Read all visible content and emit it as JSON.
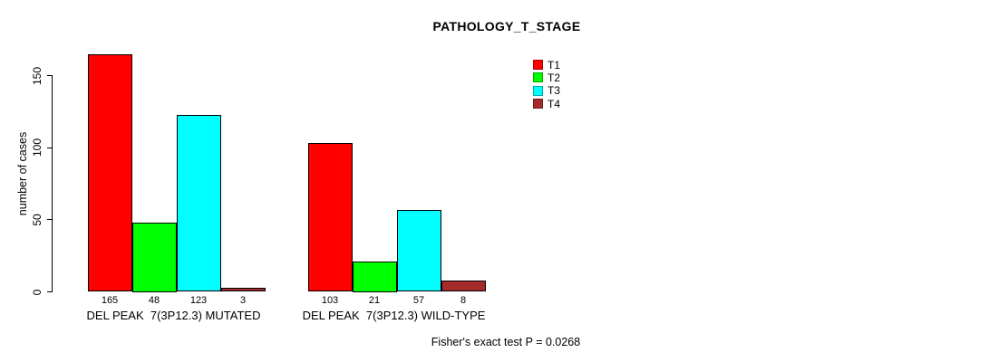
{
  "chart_data": {
    "type": "bar",
    "title": "PATHOLOGY_T_STAGE",
    "ylabel": "number of cases",
    "xlabel": "",
    "ylim": [
      0,
      165
    ],
    "yticks": [
      0,
      50,
      100,
      150
    ],
    "grid": false,
    "legend_position": "top-right",
    "categories": [
      "DEL PEAK  7(3P12.3) MUTATED",
      "DEL PEAK  7(3P12.3) WILD-TYPE"
    ],
    "series": [
      {
        "name": "T1",
        "color": "#FF0000",
        "values": [
          165,
          103
        ]
      },
      {
        "name": "T2",
        "color": "#00FF00",
        "values": [
          48,
          21
        ]
      },
      {
        "name": "T3",
        "color": "#00FFFF",
        "values": [
          123,
          57
        ]
      },
      {
        "name": "T4",
        "color": "#A52A2A",
        "values": [
          3,
          8
        ]
      }
    ],
    "bar_value_labels": [
      [
        165,
        48,
        123,
        3
      ],
      [
        103,
        21,
        57,
        8
      ]
    ],
    "annotation": "Fisher's exact test P = 0.0268"
  }
}
